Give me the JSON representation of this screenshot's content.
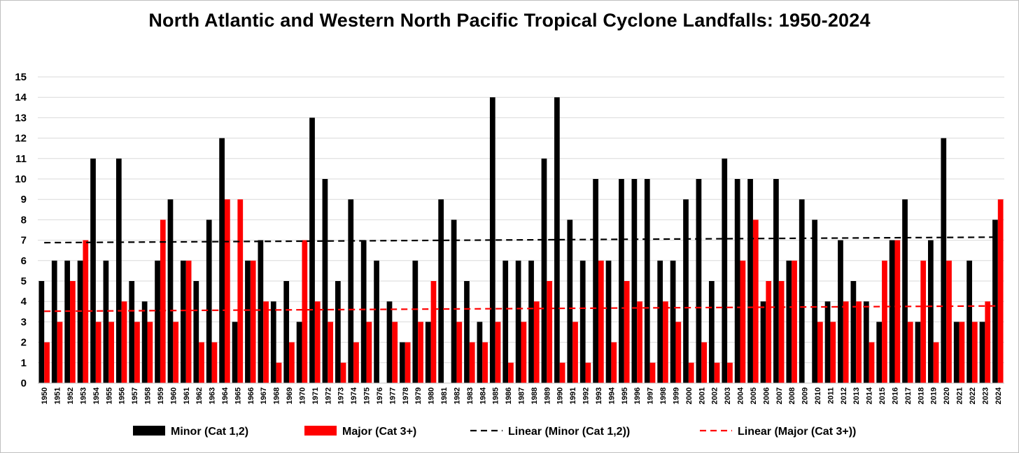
{
  "chart_data": {
    "type": "bar",
    "title": "North Atlantic and Western North Pacific Tropical Cyclone Landfalls: 1950-2024",
    "xlabel": "",
    "ylabel": "",
    "ylim": [
      0,
      15
    ],
    "y_ticks": [
      "0",
      "1",
      "2",
      "3",
      "4",
      "5",
      "6",
      "7",
      "8",
      "9",
      "10",
      "11",
      "12",
      "13",
      "14",
      "15"
    ],
    "grid": "horizontal",
    "legend_position": "bottom",
    "categories": [
      "1950",
      "1951",
      "1952",
      "1953",
      "1954",
      "1955",
      "1956",
      "1957",
      "1958",
      "1959",
      "1960",
      "1961",
      "1962",
      "1963",
      "1964",
      "1965",
      "1966",
      "1967",
      "1968",
      "1969",
      "1970",
      "1971",
      "1972",
      "1973",
      "1974",
      "1975",
      "1976",
      "1977",
      "1978",
      "1979",
      "1980",
      "1981",
      "1982",
      "1983",
      "1984",
      "1985",
      "1986",
      "1987",
      "1988",
      "1989",
      "1990",
      "1991",
      "1992",
      "1993",
      "1994",
      "1995",
      "1996",
      "1997",
      "1998",
      "1999",
      "2000",
      "2001",
      "2002",
      "2003",
      "2004",
      "2005",
      "2006",
      "2007",
      "2008",
      "2009",
      "2010",
      "2011",
      "2012",
      "2013",
      "2014",
      "2015",
      "2016",
      "2017",
      "2018",
      "2019",
      "2020",
      "2021",
      "2022",
      "2023",
      "2024"
    ],
    "series": [
      {
        "name": "Minor (Cat 1,2)",
        "color": "#000000",
        "values": [
          5,
          6,
          6,
          6,
          11,
          6,
          11,
          5,
          4,
          6,
          9,
          6,
          5,
          8,
          12,
          3,
          6,
          7,
          4,
          5,
          3,
          13,
          10,
          5,
          9,
          7,
          6,
          4,
          2,
          6,
          3,
          9,
          8,
          5,
          3,
          14,
          6,
          6,
          6,
          11,
          14,
          8,
          6,
          10,
          6,
          10,
          10,
          10,
          6,
          6,
          9,
          10,
          5,
          11,
          10,
          10,
          4,
          10,
          6,
          9,
          8,
          4,
          7,
          5,
          4,
          3,
          7,
          9,
          3,
          7,
          12,
          3,
          6,
          3,
          8
        ]
      },
      {
        "name": "Major (Cat 3+)",
        "color": "#ff0000",
        "values": [
          2,
          3,
          5,
          7,
          3,
          3,
          4,
          3,
          3,
          8,
          3,
          6,
          2,
          2,
          9,
          9,
          6,
          4,
          1,
          2,
          7,
          4,
          3,
          1,
          2,
          3,
          0,
          3,
          2,
          3,
          5,
          0,
          3,
          2,
          2,
          3,
          1,
          3,
          4,
          5,
          1,
          3,
          1,
          6,
          2,
          5,
          4,
          1,
          4,
          3,
          1,
          2,
          1,
          1,
          6,
          8,
          5,
          5,
          6,
          0,
          3,
          3,
          4,
          4,
          2,
          6,
          7,
          3,
          6,
          2,
          6,
          3,
          3,
          4,
          9
        ]
      }
    ],
    "trendlines": [
      {
        "name": "Linear (Minor (Cat 1,2))",
        "color": "#000000",
        "start": 6.88,
        "end": 7.15
      },
      {
        "name": "Linear (Major (Cat 3+))",
        "color": "#ff0000",
        "start": 3.52,
        "end": 3.78
      }
    ]
  }
}
